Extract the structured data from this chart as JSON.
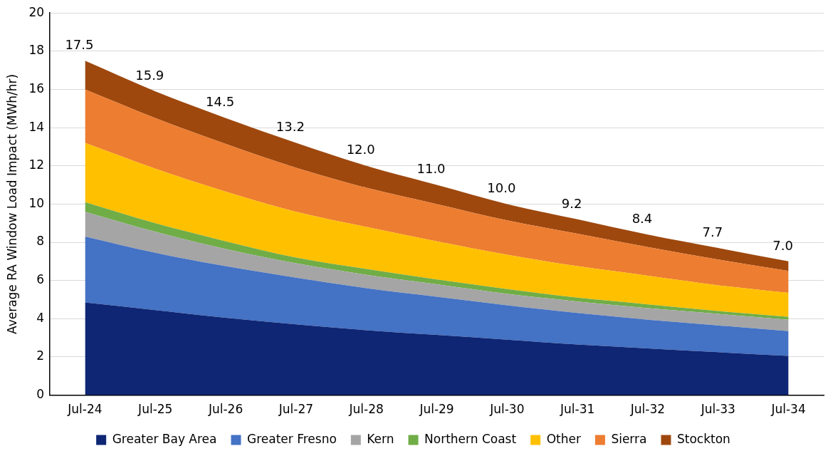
{
  "chart_data": {
    "type": "area",
    "stacked": true,
    "ylabel": "Average RA Window Load Impact (MWh/hr)",
    "categories": [
      "Jul-24",
      "Jul-25",
      "Jul-26",
      "Jul-27",
      "Jul-28",
      "Jul-29",
      "Jul-30",
      "Jul-31",
      "Jul-32",
      "Jul-33",
      "Jul-34"
    ],
    "series": [
      {
        "name": "Greater Bay Area",
        "color": "#0e2674",
        "values": [
          4.85,
          4.45,
          4.05,
          3.7,
          3.4,
          3.15,
          2.9,
          2.65,
          2.45,
          2.25,
          2.05
        ]
      },
      {
        "name": "Greater Fresno",
        "color": "#4472c4",
        "values": [
          3.45,
          3.0,
          2.7,
          2.45,
          2.2,
          2.0,
          1.8,
          1.65,
          1.5,
          1.4,
          1.3
        ]
      },
      {
        "name": "Kern",
        "color": "#a5a5a5",
        "values": [
          1.3,
          1.1,
          0.9,
          0.75,
          0.7,
          0.65,
          0.6,
          0.6,
          0.6,
          0.6,
          0.6
        ]
      },
      {
        "name": "Northern Coast",
        "color": "#70ad47",
        "values": [
          0.5,
          0.45,
          0.4,
          0.3,
          0.3,
          0.25,
          0.25,
          0.2,
          0.2,
          0.15,
          0.15
        ]
      },
      {
        "name": "Other",
        "color": "#ffc000",
        "values": [
          3.1,
          2.85,
          2.6,
          2.4,
          2.2,
          2.0,
          1.8,
          1.65,
          1.5,
          1.35,
          1.25
        ]
      },
      {
        "name": "Sierra",
        "color": "#ed7d31",
        "values": [
          2.8,
          2.65,
          2.5,
          2.3,
          2.05,
          1.95,
          1.8,
          1.7,
          1.5,
          1.35,
          1.15
        ]
      },
      {
        "name": "Stockton",
        "color": "#9e480e",
        "values": [
          1.5,
          1.4,
          1.35,
          1.3,
          1.15,
          1.0,
          0.85,
          0.75,
          0.65,
          0.6,
          0.5
        ]
      }
    ],
    "totals": [
      "17.5",
      "15.9",
      "14.5",
      "13.2",
      "12.0",
      "11.0",
      "10.0",
      "9.2",
      "8.4",
      "7.7",
      "7.0"
    ],
    "ylim": [
      0,
      20
    ],
    "yticks": [
      0,
      2,
      4,
      6,
      8,
      10,
      12,
      14,
      16,
      18,
      20
    ],
    "grid": "y",
    "legend": "bottom",
    "marker": "none"
  }
}
